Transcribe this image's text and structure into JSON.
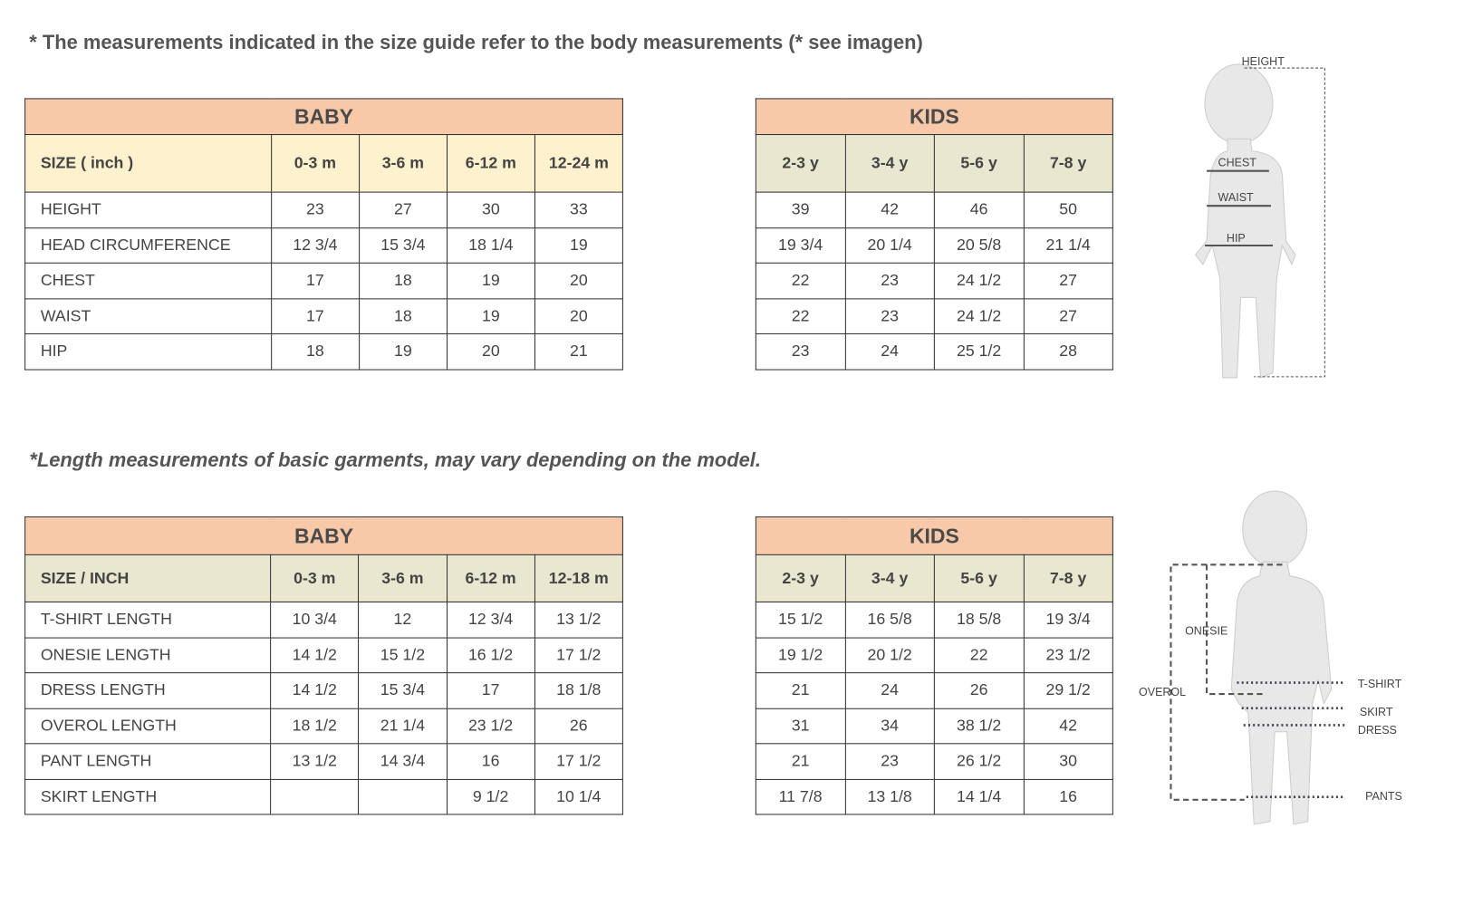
{
  "notes": {
    "body": "* The measurements indicated in the size guide refer to the body measurements (* see imagen)",
    "length": "*Length measurements of basic garments, may vary depending on the model."
  },
  "body_tables": {
    "baby": {
      "title": "BABY",
      "size_label": "SIZE  ( inch )",
      "sizes": [
        "0-3 m",
        "3-6 m",
        "6-12 m",
        "12-24 m"
      ],
      "rows": [
        {
          "label": "HEIGHT",
          "values": [
            "23",
            "27",
            "30",
            "33"
          ]
        },
        {
          "label": "HEAD CIRCUMFERENCE",
          "values": [
            "12 3/4",
            "15 3/4",
            "18 1/4",
            "19"
          ]
        },
        {
          "label": "CHEST",
          "values": [
            "17",
            "18",
            "19",
            "20"
          ]
        },
        {
          "label": "WAIST",
          "values": [
            "17",
            "18",
            "19",
            "20"
          ]
        },
        {
          "label": "HIP",
          "values": [
            "18",
            "19",
            "20",
            "21"
          ]
        }
      ]
    },
    "kids": {
      "title": "KIDS",
      "sizes": [
        "2-3 y",
        "3-4 y",
        "5-6 y",
        "7-8 y"
      ],
      "rows": [
        {
          "values": [
            "39",
            "42",
            "46",
            "50"
          ]
        },
        {
          "values": [
            "19 3/4",
            "20 1/4",
            "20 5/8",
            "21 1/4"
          ]
        },
        {
          "values": [
            "22",
            "23",
            "24 1/2",
            "27"
          ]
        },
        {
          "values": [
            "22",
            "23",
            "24 1/2",
            "27"
          ]
        },
        {
          "values": [
            "23",
            "24",
            "25 1/2",
            "28"
          ]
        }
      ]
    }
  },
  "length_tables": {
    "baby": {
      "title": "BABY",
      "size_label": "SIZE   /   INCH",
      "sizes": [
        "0-3 m",
        "3-6 m",
        "6-12 m",
        "12-18 m"
      ],
      "rows": [
        {
          "label": "T-SHIRT  LENGTH",
          "values": [
            "10 3/4",
            "12",
            "12 3/4",
            "13 1/2"
          ]
        },
        {
          "label": "ONESIE  LENGTH",
          "values": [
            "14 1/2",
            "15 1/2",
            "16 1/2",
            "17 1/2"
          ]
        },
        {
          "label": "DRESS  LENGTH",
          "values": [
            "14 1/2",
            "15 3/4",
            "17",
            "18 1/8"
          ]
        },
        {
          "label": "OVEROL  LENGTH",
          "values": [
            "18 1/2",
            "21 1/4",
            "23 1/2",
            "26"
          ]
        },
        {
          "label": "PANT  LENGTH",
          "values": [
            "13 1/2",
            "14 3/4",
            "16",
            "17 1/2"
          ]
        },
        {
          "label": "SKIRT  LENGTH",
          "values": [
            "",
            "",
            "9 1/2",
            "10 1/4"
          ]
        }
      ]
    },
    "kids": {
      "title": "KIDS",
      "sizes": [
        "2-3 y",
        "3-4 y",
        "5-6 y",
        "7-8 y"
      ],
      "rows": [
        {
          "values": [
            "15 1/2",
            "16 5/8",
            "18 5/8",
            "19 3/4"
          ]
        },
        {
          "values": [
            "19 1/2",
            "20 1/2",
            "22",
            "23 1/2"
          ]
        },
        {
          "values": [
            "21",
            "24",
            "26",
            "29 1/2"
          ]
        },
        {
          "values": [
            "31",
            "34",
            "38 1/2",
            "42"
          ]
        },
        {
          "values": [
            "21",
            "23",
            "26 1/2",
            "30"
          ]
        },
        {
          "values": [
            "11 7/8",
            "13  1/8",
            "14 1/4",
            "16"
          ]
        }
      ]
    }
  },
  "figure_body": {
    "labels": {
      "height": "HEIGHT",
      "chest": "CHEST",
      "waist": "WAIST",
      "hip": "HIP"
    }
  },
  "figure_length": {
    "labels": {
      "onesie": "ONESIE",
      "overol": "OVEROL",
      "tshirt": "T-SHIRT",
      "skirt": "SKIRT",
      "dress": "DRESS",
      "pants": "PANTS"
    }
  },
  "colors": {
    "header": "#f7c9a8",
    "size_row_baby": "#fdf2cd",
    "size_row_alt": "#eae7d0",
    "figure": "#e8e8e8"
  }
}
